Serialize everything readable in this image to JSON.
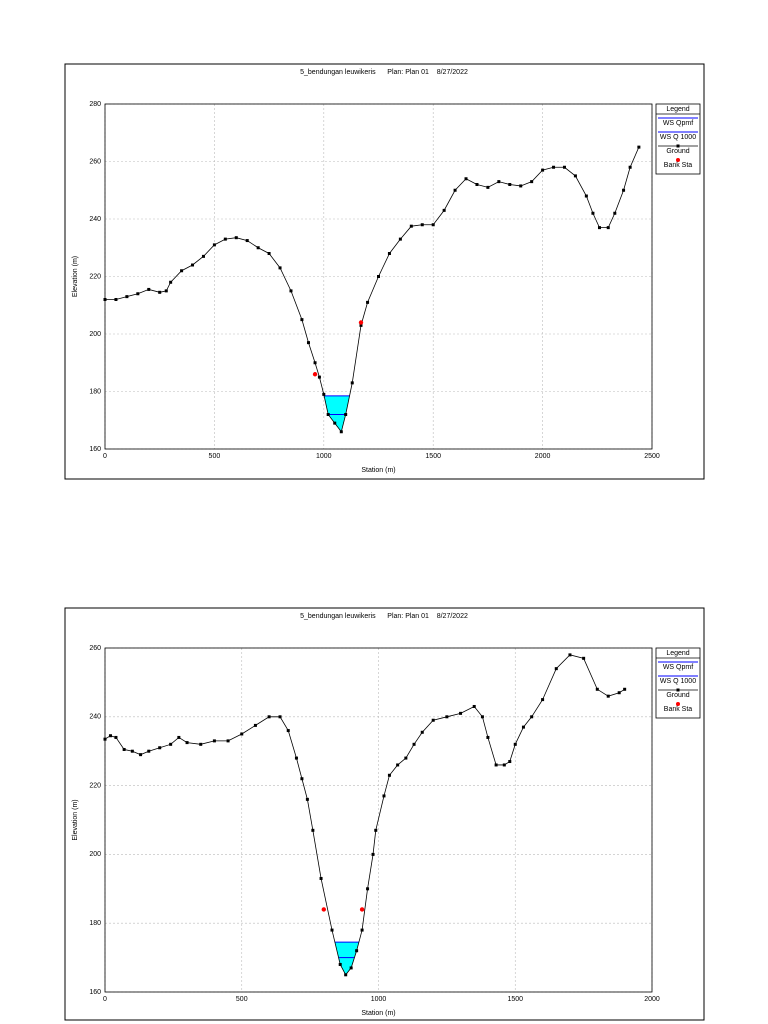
{
  "chart_data": [
    {
      "type": "line",
      "title": "5_bendungan leuwikeris      Plan: Plan 01    8/27/2022",
      "x_label": "Station (m)",
      "y_label": "Elevation (m)",
      "legend_title": "Legend",
      "legend": "right",
      "grid": true,
      "xlim": [
        0,
        2500
      ],
      "xticks": [
        0,
        500,
        1000,
        1500,
        2000,
        2500
      ],
      "ylim": [
        160,
        280
      ],
      "yticks": [
        160,
        180,
        200,
        220,
        240,
        260,
        280
      ],
      "water": [
        {
          "name": "WS Qpmf",
          "color": "#0000ff",
          "values": [
            178.5
          ]
        },
        {
          "name": "WS Q 1000",
          "color": "#0000ff",
          "values": [
            172
          ]
        }
      ],
      "series": [
        {
          "name": "Ground",
          "color": "#000000",
          "x": [
            0,
            50,
            100,
            150,
            200,
            250,
            280,
            300,
            350,
            400,
            450,
            500,
            550,
            600,
            650,
            700,
            750,
            800,
            850,
            900,
            930,
            960,
            980,
            1000,
            1020,
            1050,
            1080,
            1100,
            1130,
            1170,
            1200,
            1250,
            1300,
            1350,
            1400,
            1450,
            1500,
            1550,
            1600,
            1650,
            1700,
            1750,
            1800,
            1850,
            1900,
            1950,
            2000,
            2050,
            2100,
            2150,
            2200,
            2230,
            2260,
            2300,
            2330,
            2370,
            2400,
            2440
          ],
          "values": [
            212,
            212,
            213,
            214,
            215.5,
            214.5,
            215,
            218,
            222,
            224,
            227,
            231,
            233,
            233.5,
            232.5,
            230,
            228,
            223,
            215,
            205,
            197,
            190,
            185,
            179,
            172,
            169,
            166,
            172,
            183,
            203,
            211,
            220,
            228,
            233,
            237.5,
            238,
            238,
            243,
            250,
            254,
            252,
            251,
            253,
            252,
            251.5,
            253,
            257,
            258,
            258,
            255,
            248,
            242,
            237,
            237,
            242,
            250,
            258,
            265
          ]
        },
        {
          "name": "Bank Sta",
          "color": "#ff0000",
          "x": [
            960,
            1170
          ],
          "values": [
            186,
            204
          ]
        }
      ]
    },
    {
      "type": "line",
      "title": "5_bendungan leuwikeris      Plan: Plan 01    8/27/2022",
      "x_label": "Station (m)",
      "y_label": "Elevation (m)",
      "legend_title": "Legend",
      "legend": "right",
      "grid": true,
      "xlim": [
        0,
        2000
      ],
      "xticks": [
        0,
        500,
        1000,
        1500,
        2000
      ],
      "ylim": [
        160,
        260
      ],
      "yticks": [
        160,
        180,
        200,
        220,
        240,
        260
      ],
      "water": [
        {
          "name": "WS Qpmf",
          "color": "#0000ff",
          "values": [
            174.5
          ]
        },
        {
          "name": "WS Q 1000",
          "color": "#0000ff",
          "values": [
            170
          ]
        }
      ],
      "series": [
        {
          "name": "Ground",
          "color": "#000000",
          "x": [
            0,
            20,
            40,
            70,
            100,
            130,
            160,
            200,
            240,
            270,
            300,
            350,
            400,
            450,
            500,
            550,
            600,
            640,
            670,
            700,
            720,
            740,
            760,
            790,
            830,
            860,
            880,
            900,
            920,
            940,
            960,
            980,
            990,
            1020,
            1040,
            1070,
            1100,
            1130,
            1160,
            1200,
            1250,
            1300,
            1350,
            1380,
            1400,
            1430,
            1460,
            1480,
            1500,
            1530,
            1560,
            1600,
            1650,
            1700,
            1750,
            1800,
            1840,
            1880,
            1900
          ],
          "values": [
            233.5,
            234.5,
            234,
            230.5,
            230,
            229,
            230,
            231,
            232,
            234,
            232.5,
            232,
            233,
            233,
            235,
            237.5,
            240,
            240,
            236,
            228,
            222,
            216,
            207,
            193,
            178,
            168,
            165,
            167,
            172,
            178,
            190,
            200,
            207,
            217,
            223,
            226,
            228,
            232,
            235.5,
            239,
            240,
            241,
            243,
            240,
            234,
            226,
            226,
            227,
            232,
            237,
            240,
            245,
            254,
            258,
            257,
            248,
            246,
            247,
            248
          ]
        },
        {
          "name": "Bank Sta",
          "color": "#ff0000",
          "x": [
            800,
            940
          ],
          "values": [
            184,
            184
          ]
        }
      ]
    }
  ]
}
